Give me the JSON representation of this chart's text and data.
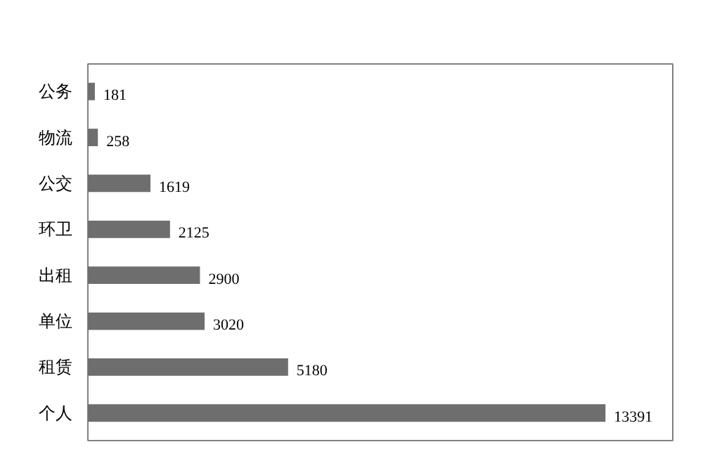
{
  "chart_data": {
    "type": "bar",
    "orientation": "horizontal",
    "categories": [
      "公务",
      "物流",
      "公交",
      "环卫",
      "出租",
      "单位",
      "租赁",
      "个人"
    ],
    "values": [
      181,
      258,
      1619,
      2125,
      2900,
      3020,
      5180,
      13391
    ],
    "color": "#6e6e6e",
    "data_labels": true,
    "grid": false
  }
}
